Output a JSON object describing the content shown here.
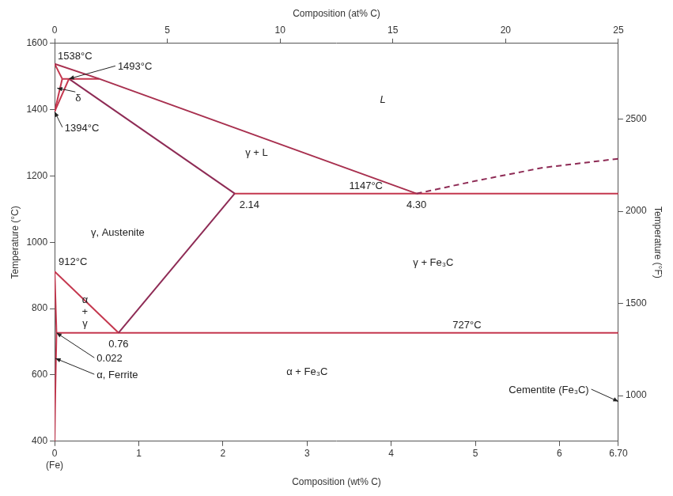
{
  "chart_data": {
    "type": "line",
    "x_label": "Composition (wt% C)",
    "x2_label": "Composition (at% C)",
    "y_label": "Temperature (°C)",
    "y2_label": "Temperature (°F)",
    "xlim": [
      0,
      6.7
    ],
    "xticks": [
      {
        "value": 0,
        "label": "0\n(Fe)"
      },
      1,
      2,
      3,
      4,
      5,
      6,
      {
        "value": 6.7,
        "label": "6.70"
      }
    ],
    "x2lim": [
      0,
      25
    ],
    "x2ticks": [
      0,
      5,
      10,
      15,
      20,
      25
    ],
    "ylim": [
      400,
      1600
    ],
    "yticks": [
      400,
      600,
      800,
      1000,
      1200,
      1400,
      1600
    ],
    "y2lim": [
      752,
      2912
    ],
    "y2ticks": [
      1000,
      1500,
      2000,
      2500
    ],
    "grid": false,
    "boundaries": [
      {
        "points": [
          [
            0,
            1538
          ],
          [
            0.53,
            1493
          ],
          [
            4.3,
            1147
          ]
        ],
        "color": "#a8304f",
        "line_style": "solid"
      },
      {
        "points": [
          [
            4.3,
            1147
          ],
          [
            5.0,
            1185
          ],
          [
            5.8,
            1225
          ],
          [
            6.7,
            1252
          ]
        ],
        "color": "#8e2b55",
        "line_style": "dashed"
      },
      {
        "points": [
          [
            0,
            1538
          ],
          [
            0.09,
            1493
          ]
        ],
        "color": "#c4374e",
        "line_style": "solid"
      },
      {
        "points": [
          [
            0.09,
            1493
          ],
          [
            0.53,
            1493
          ]
        ],
        "color": "#c4374e",
        "line_style": "solid"
      },
      {
        "points": [
          [
            0,
            1394
          ],
          [
            0.09,
            1493
          ]
        ],
        "color": "#c4374e",
        "line_style": "solid"
      },
      {
        "points": [
          [
            0,
            1394
          ],
          [
            0.17,
            1493
          ]
        ],
        "color": "#c4374e",
        "line_style": "solid"
      },
      {
        "points": [
          [
            0.17,
            1493
          ],
          [
            2.14,
            1147
          ]
        ],
        "color": "#8e2b55",
        "line_style": "solid"
      },
      {
        "points": [
          [
            2.14,
            1147
          ],
          [
            6.7,
            1147
          ]
        ],
        "color": "#c4374e",
        "line_style": "solid"
      },
      {
        "points": [
          [
            0.76,
            727
          ],
          [
            2.14,
            1147
          ]
        ],
        "color": "#8e2b55",
        "line_style": "solid"
      },
      {
        "points": [
          [
            0,
            912
          ],
          [
            0.76,
            727
          ]
        ],
        "color": "#c4374e",
        "line_style": "solid"
      },
      {
        "points": [
          [
            0,
            912
          ],
          [
            0.022,
            727
          ]
        ],
        "color": "#c4374e",
        "line_style": "solid"
      },
      {
        "points": [
          [
            0.022,
            727
          ],
          [
            6.7,
            727
          ]
        ],
        "color": "#c4374e",
        "line_style": "solid"
      },
      {
        "points": [
          [
            0.022,
            727
          ],
          [
            0.012,
            600
          ],
          [
            0.005,
            500
          ],
          [
            0,
            400
          ]
        ],
        "color": "#c4374e",
        "line_style": "solid"
      }
    ],
    "key_points": [
      {
        "x": 0,
        "y": 1538,
        "label": "1538°C"
      },
      {
        "x": 0.17,
        "y": 1493,
        "label": "1493°C"
      },
      {
        "x": 0,
        "y": 1394,
        "label": "1394°C"
      },
      {
        "x": 0,
        "y": 912,
        "label": "912°C"
      },
      {
        "x": 2.14,
        "y": 1147,
        "label": "2.14"
      },
      {
        "x": 4.3,
        "y": 1147,
        "label": "4.30"
      },
      {
        "x": 0.76,
        "y": 727,
        "label": "0.76"
      },
      {
        "x": 0.022,
        "y": 727,
        "label": "0.022"
      }
    ],
    "isotherm_labels": [
      {
        "y": 1147,
        "label": "1147°C"
      },
      {
        "y": 727,
        "label": "727°C"
      }
    ],
    "phase_labels": [
      "L",
      "γ + L",
      "δ",
      "γ, Austenite",
      "α + γ",
      "α, Ferrite",
      "γ + Fe₃C",
      "α + Fe₃C",
      "Cementite (Fe₃C)"
    ]
  }
}
